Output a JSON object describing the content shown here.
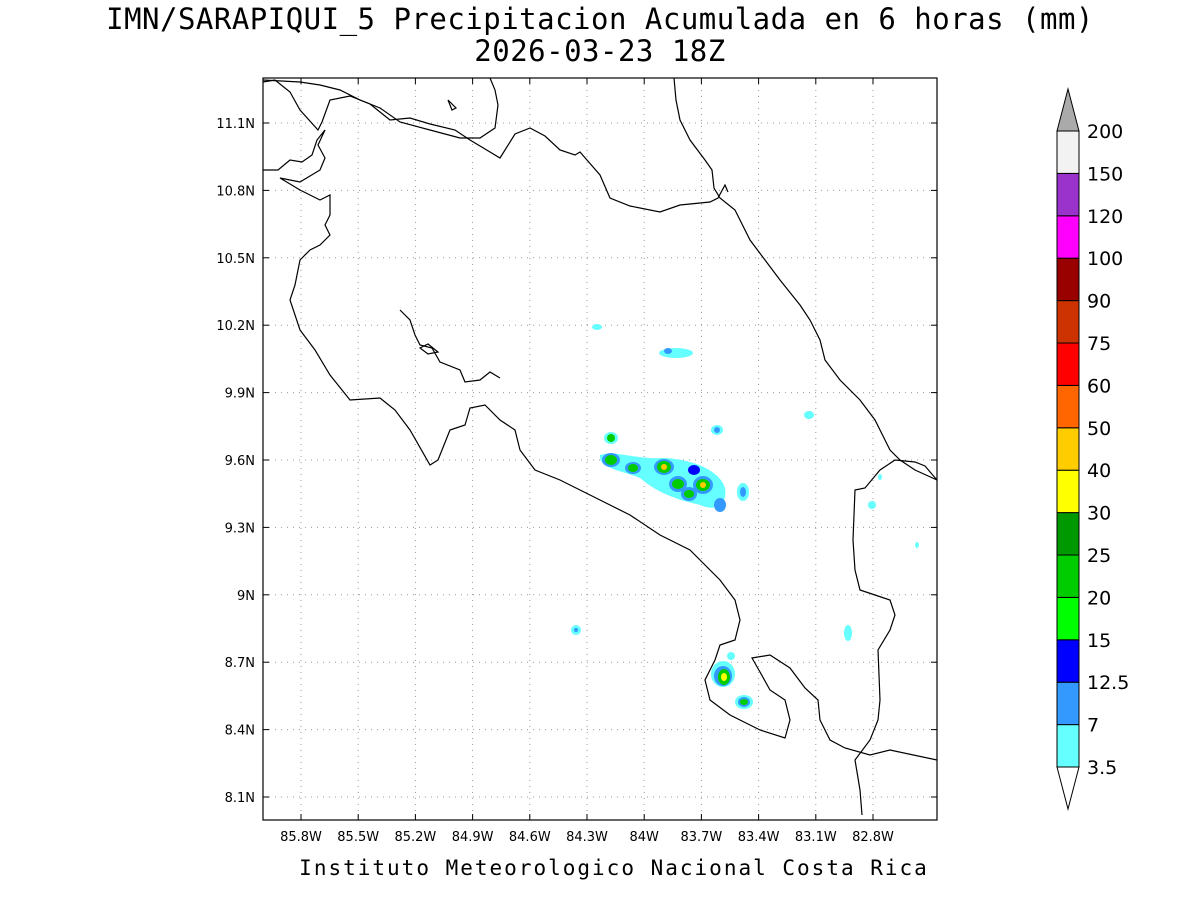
{
  "title": {
    "line1": "IMN/SARAPIQUI_5 Precipitacion Acumulada en 6 horas (mm)",
    "line2": "2026-03-23 18Z"
  },
  "footer": "Instituto Meteorologico Nacional Costa Rica",
  "map": {
    "lon_ticks": [
      "85.8W",
      "85.5W",
      "85.2W",
      "84.9W",
      "84.6W",
      "84.3W",
      "84W",
      "83.7W",
      "83.4W",
      "83.1W",
      "82.8W"
    ],
    "lat_ticks": [
      "11.1N",
      "10.8N",
      "10.5N",
      "10.2N",
      "9.9N",
      "9.6N",
      "9.3N",
      "9N",
      "8.7N",
      "8.4N",
      "8.1N"
    ],
    "grid": "dotted",
    "coastline_color": "#000000"
  },
  "colorbar": {
    "levels": [
      "3.5",
      "7",
      "12.5",
      "15",
      "20",
      "25",
      "30",
      "40",
      "50",
      "60",
      "75",
      "90",
      "100",
      "120",
      "150",
      "200"
    ],
    "colors": [
      "#66ffff",
      "#3399ff",
      "#0000ff",
      "#00ff00",
      "#00cc00",
      "#009900",
      "#ffff00",
      "#ffcc00",
      "#ff6600",
      "#ff0000",
      "#cc3300",
      "#990000",
      "#ff00ff",
      "#9933cc",
      "#f2f2f2",
      "#aaaaaa"
    ]
  }
}
